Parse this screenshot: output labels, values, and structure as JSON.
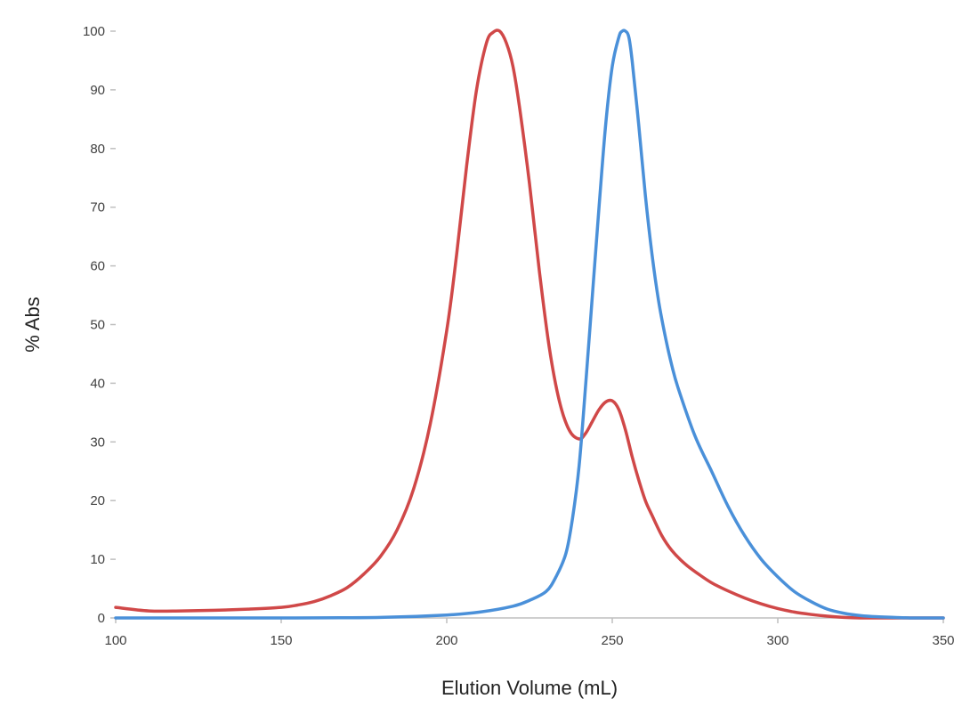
{
  "chart_data": {
    "type": "line",
    "title": "",
    "xlabel": "Elution Volume (mL)",
    "ylabel": "% Abs",
    "xlim": [
      100,
      350
    ],
    "ylim": [
      0,
      100
    ],
    "xticks": [
      "100",
      "150",
      "200",
      "250",
      "300",
      "350"
    ],
    "yticks": [
      "0",
      "10",
      "20",
      "30",
      "40",
      "50",
      "60",
      "70",
      "80",
      "90",
      "100"
    ],
    "grid": false,
    "legend": "none",
    "series": [
      {
        "color": "#d04848",
        "x": [
          100,
          110,
          120,
          130,
          140,
          150,
          155,
          160,
          165,
          170,
          175,
          180,
          185,
          190,
          195,
          200,
          203,
          206,
          209,
          212,
          214,
          216,
          218,
          220,
          222,
          225,
          228,
          231,
          234,
          237,
          240,
          242,
          244,
          246,
          248,
          250,
          252,
          254,
          256,
          258,
          260,
          262,
          265,
          268,
          272,
          276,
          280,
          285,
          290,
          295,
          300,
          305,
          310,
          315,
          320,
          325,
          330,
          335,
          340,
          345,
          350
        ],
        "y": [
          1.8,
          1.2,
          1.2,
          1.3,
          1.5,
          1.8,
          2.2,
          2.8,
          3.8,
          5.2,
          7.5,
          10.5,
          15,
          22,
          33,
          49,
          62,
          77,
          90,
          98,
          99.8,
          100,
          98,
          94,
          87,
          74,
          59,
          46,
          37,
          32,
          30.5,
          31.5,
          33.5,
          35.5,
          36.8,
          37,
          35.5,
          32,
          27.5,
          23.5,
          20,
          17.5,
          14,
          11.5,
          9.2,
          7.5,
          6,
          4.6,
          3.4,
          2.4,
          1.6,
          1,
          0.6,
          0.3,
          0.1,
          0,
          0,
          0,
          0,
          0,
          0
        ]
      },
      {
        "color": "#4a90d9",
        "x": [
          100,
          150,
          180,
          200,
          210,
          220,
          225,
          230,
          233,
          236,
          238,
          240,
          242,
          244,
          246,
          248,
          250,
          252,
          253,
          254,
          255,
          256,
          258,
          260,
          262,
          264,
          266,
          268,
          270,
          275,
          280,
          285,
          290,
          295,
          300,
          305,
          310,
          315,
          320,
          325,
          330,
          335,
          340,
          345,
          350
        ],
        "y": [
          0,
          0,
          0.1,
          0.5,
          1,
          2,
          3,
          4.5,
          7,
          11,
          17,
          26,
          40,
          55,
          70,
          84,
          94,
          99,
          100,
          100,
          99,
          95,
          84,
          72,
          62,
          54,
          48,
          43,
          39,
          31,
          25,
          19,
          14,
          10,
          7,
          4.5,
          2.8,
          1.5,
          0.8,
          0.4,
          0.2,
          0.1,
          0,
          0,
          0
        ]
      }
    ]
  }
}
